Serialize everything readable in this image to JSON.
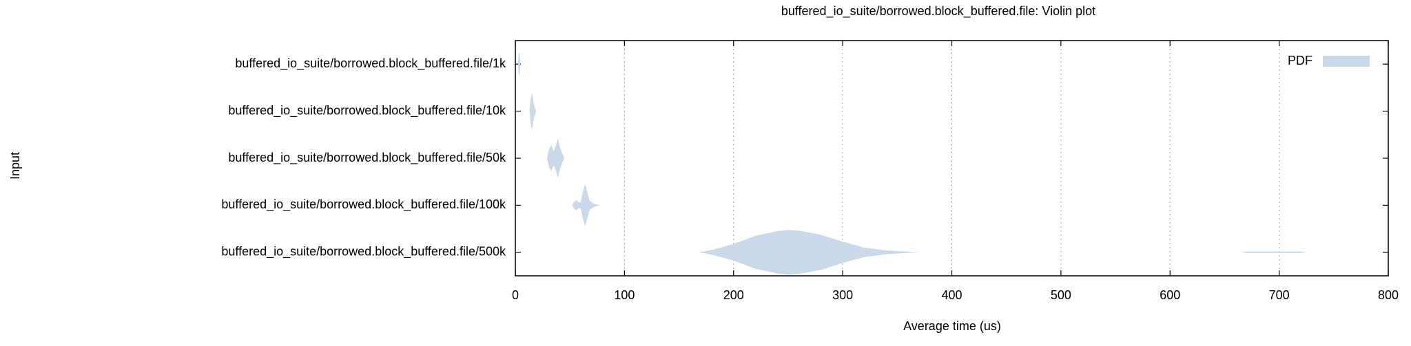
{
  "chart_data": {
    "type": "violin",
    "title": "buffered_io_suite/borrowed.block_buffered.file: Violin plot",
    "x_label": "Average time (us)",
    "y_label": "Input",
    "legend": "PDF",
    "legend_position": "upper right",
    "color": "#c9d9ea",
    "grid": true,
    "xlim": [
      0,
      800
    ],
    "xticks": [
      0,
      100,
      200,
      300,
      400,
      500,
      600,
      700,
      800
    ],
    "categories": [
      "buffered_io_suite/borrowed.block_buffered.file/1k",
      "buffered_io_suite/borrowed.block_buffered.file/10k",
      "buffered_io_suite/borrowed.block_buffered.file/50k",
      "buffered_io_suite/borrowed.block_buffered.file/100k",
      "buffered_io_suite/borrowed.block_buffered.file/500k"
    ],
    "series": [
      {
        "x": [
          2.5,
          3,
          3.5,
          4,
          4.5
        ],
        "density": [
          0,
          0.4,
          0.5,
          0.4,
          0
        ]
      },
      {
        "x": [
          13,
          14,
          15,
          16,
          17,
          18,
          19
        ],
        "density": [
          0,
          0.5,
          0.8,
          0.6,
          0.3,
          0.15,
          0
        ]
      },
      {
        "x": [
          29,
          31,
          33,
          35,
          37,
          39,
          41,
          43,
          45
        ],
        "density": [
          0,
          0.4,
          0.55,
          0.3,
          0.5,
          0.85,
          0.45,
          0.2,
          0
        ]
      },
      {
        "x": [
          52,
          54,
          56,
          58,
          60,
          62,
          64,
          66,
          68,
          72,
          78
        ],
        "density": [
          0,
          0.15,
          0.22,
          0.12,
          0.15,
          0.6,
          0.9,
          0.55,
          0.2,
          0.06,
          0
        ]
      },
      {
        "x": [
          168,
          180,
          200,
          220,
          240,
          250,
          260,
          280,
          300,
          320,
          340,
          370,
          380,
          665,
          670,
          720,
          725
        ],
        "density": [
          0,
          0.1,
          0.35,
          0.7,
          0.9,
          0.95,
          0.92,
          0.75,
          0.45,
          0.2,
          0.08,
          0,
          0,
          0,
          0.03,
          0.03,
          0
        ]
      }
    ]
  }
}
